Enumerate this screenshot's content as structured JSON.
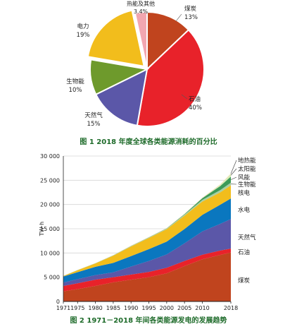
{
  "chart_data": [
    {
      "type": "pie",
      "caption": "图 1  2018 年度全球各类能源消耗的百分比",
      "slices": [
        {
          "name": "煤炭",
          "value": 13,
          "label": "13%",
          "color": "#c0441e"
        },
        {
          "name": "石油",
          "value": 40,
          "label": "40%",
          "color": "#e8222a"
        },
        {
          "name": "天然气",
          "value": 15,
          "label": "15%",
          "color": "#5b57a8"
        },
        {
          "name": "生物能",
          "value": 10,
          "label": "10%",
          "color": "#6e9a2c"
        },
        {
          "name": "电力",
          "value": 19,
          "label": "19%",
          "color": "#f2bd1c"
        },
        {
          "name": "热能及其他",
          "value": 3.4,
          "label": "3.4%",
          "color": "#f2a6b0"
        }
      ]
    },
    {
      "type": "area",
      "caption": "图 2  1971－2018 年间各类能源发电的发展趋势",
      "ylabel": "TW·h",
      "ylim": [
        0,
        30000
      ],
      "yticks": [
        "0",
        "5 000",
        "10 000",
        "15 000",
        "20 000",
        "25 000",
        "30 000"
      ],
      "xlim": [
        1971,
        2018
      ],
      "xticks": [
        "1971",
        "1975",
        "1980",
        "1985",
        "1990",
        "1995",
        "2000",
        "2005",
        "2010",
        "2018"
      ],
      "x": [
        1971,
        1975,
        1980,
        1985,
        1990,
        1995,
        2000,
        2005,
        2010,
        2015,
        2018
      ],
      "series": [
        {
          "name": "煤炭",
          "color": "#c0441e",
          "values": [
            2100,
            2550,
            3200,
            3950,
            4500,
            5000,
            5800,
            7300,
            8700,
            9600,
            10100
          ]
        },
        {
          "name": "石油",
          "color": "#e8222a",
          "values": [
            1100,
            1200,
            1300,
            1050,
            1050,
            1100,
            1150,
            1050,
            950,
            900,
            800
          ]
        },
        {
          "name": "天然气",
          "color": "#5b57a8",
          "values": [
            700,
            850,
            950,
            1000,
            1650,
            2250,
            2750,
            3650,
            4800,
            5500,
            6100
          ]
        },
        {
          "name": "水电",
          "color": "#0a77bf",
          "values": [
            1250,
            1450,
            1700,
            1950,
            2150,
            2450,
            2650,
            2950,
            3400,
            3950,
            4250
          ]
        },
        {
          "name": "核电",
          "color": "#f2bd1c",
          "values": [
            100,
            400,
            700,
            1500,
            2000,
            2300,
            2550,
            2750,
            2750,
            2550,
            2700
          ]
        },
        {
          "name": "生物能",
          "color": "#a8cfa0",
          "values": [
            30,
            40,
            50,
            80,
            120,
            140,
            160,
            230,
            350,
            450,
            550
          ]
        },
        {
          "name": "风能",
          "color": "#3c9a58",
          "values": [
            0,
            0,
            0,
            0,
            5,
            10,
            30,
            100,
            350,
            850,
            1250
          ]
        },
        {
          "name": "太阳能",
          "color": "#d9ecb8",
          "values": [
            0,
            0,
            0,
            0,
            0,
            0,
            0,
            5,
            30,
            250,
            550
          ]
        },
        {
          "name": "地热能",
          "color": "#f5d9a6",
          "values": [
            10,
            15,
            20,
            30,
            40,
            45,
            50,
            60,
            70,
            80,
            90
          ]
        }
      ]
    }
  ]
}
